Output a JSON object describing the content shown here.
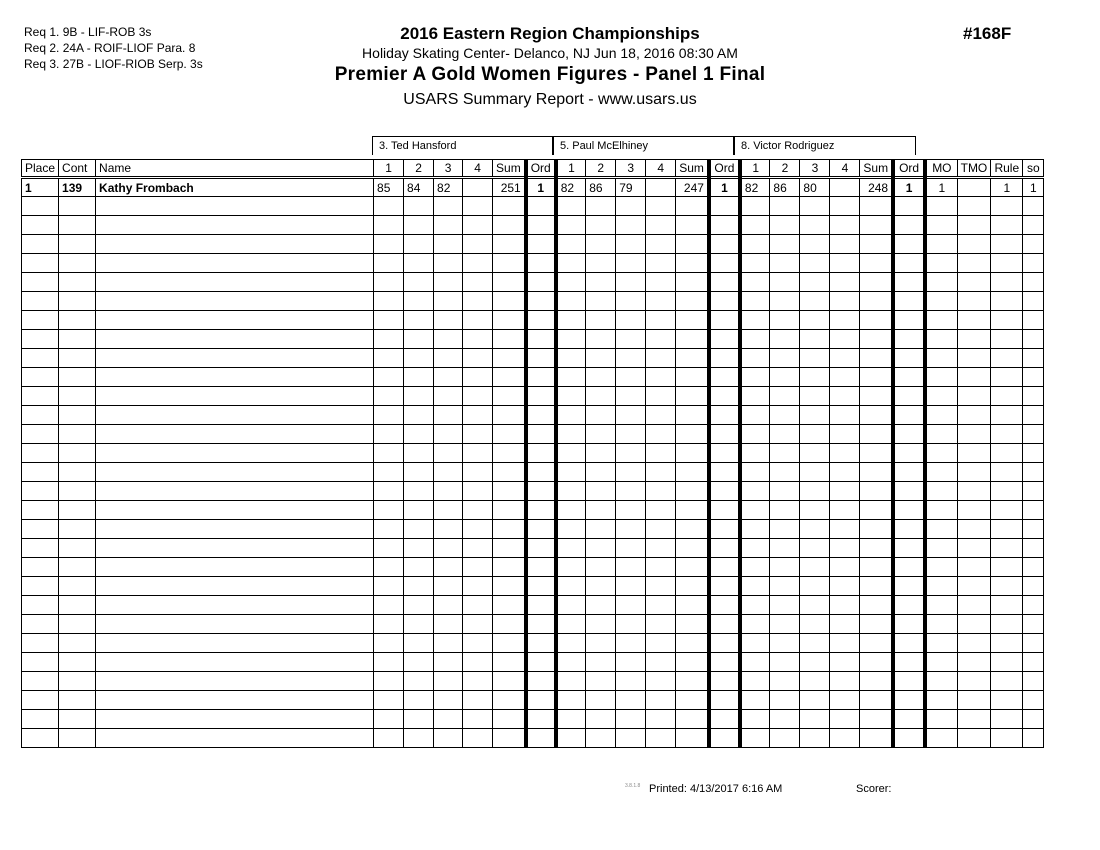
{
  "requirements": [
    "Req  1.  9B - LIF-ROB 3s",
    "Req  2.  24A - ROIF-LIOF Para. 8",
    "Req  3.  27B - LIOF-RIOB Serp. 3s"
  ],
  "header": {
    "title": "2016 Eastern Region Championships",
    "venue": "Holiday Skating Center- Delanco, NJ  Jun 18, 2016  08:30 AM",
    "event": "Premier A Gold Women Figures - Panel 1 Final",
    "report": "USARS Summary Report - www.usars.us",
    "event_number": "#168F"
  },
  "judges": [
    "3.  Ted Hansford",
    "5.  Paul McElhiney",
    "8.  Victor Rodriguez"
  ],
  "columns": [
    "Place",
    "Cont",
    "Name",
    "1",
    "2",
    "3",
    "4",
    "Sum",
    "Ord",
    "1",
    "2",
    "3",
    "4",
    "Sum",
    "Ord",
    "1",
    "2",
    "3",
    "4",
    "Sum",
    "Ord",
    "MO",
    "TMO",
    "Rule",
    "so"
  ],
  "rows": [
    [
      "1",
      "139",
      "Kathy Frombach",
      "85",
      "84",
      "82",
      "",
      "251",
      "1",
      "82",
      "86",
      "79",
      "",
      "247",
      "1",
      "82",
      "86",
      "80",
      "",
      "248",
      "1",
      "1",
      "",
      "1",
      "1"
    ]
  ],
  "footer": {
    "version": "3.8.1.8",
    "printed": "Printed:  4/13/2017  6:16 AM",
    "scorer": "Scorer:"
  }
}
